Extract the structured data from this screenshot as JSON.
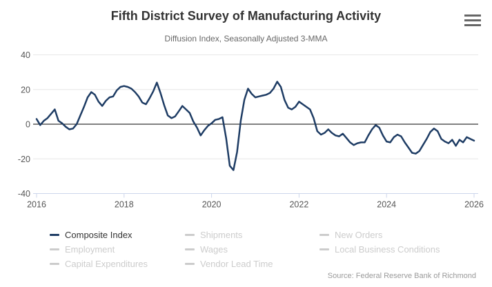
{
  "header": {
    "title": "Fifth District Survey of Manufacturing Activity",
    "subtitle": "Diffusion Index, Seasonally Adjusted 3-MMA"
  },
  "source": {
    "text": "Source: Federal Reserve Bank of Richmond"
  },
  "colors": {
    "line": "#1e3c64",
    "grid": "#e6e6e6",
    "zero_line": "#000000",
    "axis_line": "#ccd6eb",
    "axis_label": "#555555",
    "legend_active_text": "#333333",
    "legend_disabled": "#cccccc"
  },
  "legend": {
    "columns": [
      [
        {
          "label": "Composite Index",
          "enabled": true
        },
        {
          "label": "Employment",
          "enabled": false
        },
        {
          "label": "Capital Expenditures",
          "enabled": false
        }
      ],
      [
        {
          "label": "Shipments",
          "enabled": false
        },
        {
          "label": "Wages",
          "enabled": false
        },
        {
          "label": "Vendor Lead Time",
          "enabled": false
        }
      ],
      [
        {
          "label": "New Orders",
          "enabled": false
        },
        {
          "label": "Local Business Conditions",
          "enabled": false
        }
      ]
    ]
  },
  "chart_data": {
    "type": "line",
    "title": "Fifth District Survey of Manufacturing Activity",
    "subtitle": "Diffusion Index, Seasonally Adjusted 3-MMA",
    "xlim": [
      2016,
      2026.08
    ],
    "ylim": [
      -40,
      40
    ],
    "xticks": [
      2016,
      2018,
      2020,
      2022,
      2024,
      2026
    ],
    "yticks": [
      40,
      20,
      0,
      -20,
      -40
    ],
    "grid": true,
    "legend_position": "bottom",
    "x_start_year": 2016,
    "x_step_months": 1,
    "series": [
      {
        "name": "Composite Index",
        "color": "#1e3c64",
        "values": [
          3,
          -0.5,
          2,
          3.5,
          6,
          8.5,
          2,
          0.5,
          -1.5,
          -3,
          -2.5,
          0,
          5,
          10,
          15.5,
          18.5,
          17,
          13,
          10.5,
          13.5,
          15.5,
          16,
          19.5,
          21.5,
          22,
          21.5,
          20.5,
          18.5,
          16,
          12.5,
          11.5,
          15,
          19,
          24,
          18,
          11,
          5,
          3.5,
          4.5,
          7.5,
          10.5,
          8.5,
          6.5,
          1.5,
          -2,
          -6.5,
          -3.5,
          -1,
          0.5,
          2.5,
          3,
          4,
          -8,
          -24,
          -26.5,
          -16,
          2,
          14,
          20.5,
          17.5,
          15.5,
          16,
          16.5,
          17,
          18,
          20.5,
          24.5,
          21.5,
          14,
          9.5,
          8.5,
          10,
          13,
          11.5,
          10,
          8.5,
          3.5,
          -4,
          -6,
          -5,
          -3,
          -5,
          -6.5,
          -7,
          -5.5,
          -8,
          -10.5,
          -12,
          -11,
          -10.5,
          -10.5,
          -6.5,
          -3,
          -0.5,
          -2,
          -6.5,
          -10,
          -10.5,
          -7.5,
          -6,
          -7,
          -10.5,
          -13.5,
          -16.5,
          -17,
          -15.5,
          -12,
          -8.5,
          -4.5,
          -2.5,
          -4,
          -8.5,
          -10,
          -11,
          -9,
          -12.5,
          -9,
          -10.5,
          -7.5,
          -8.5,
          -9.5
        ]
      }
    ]
  }
}
